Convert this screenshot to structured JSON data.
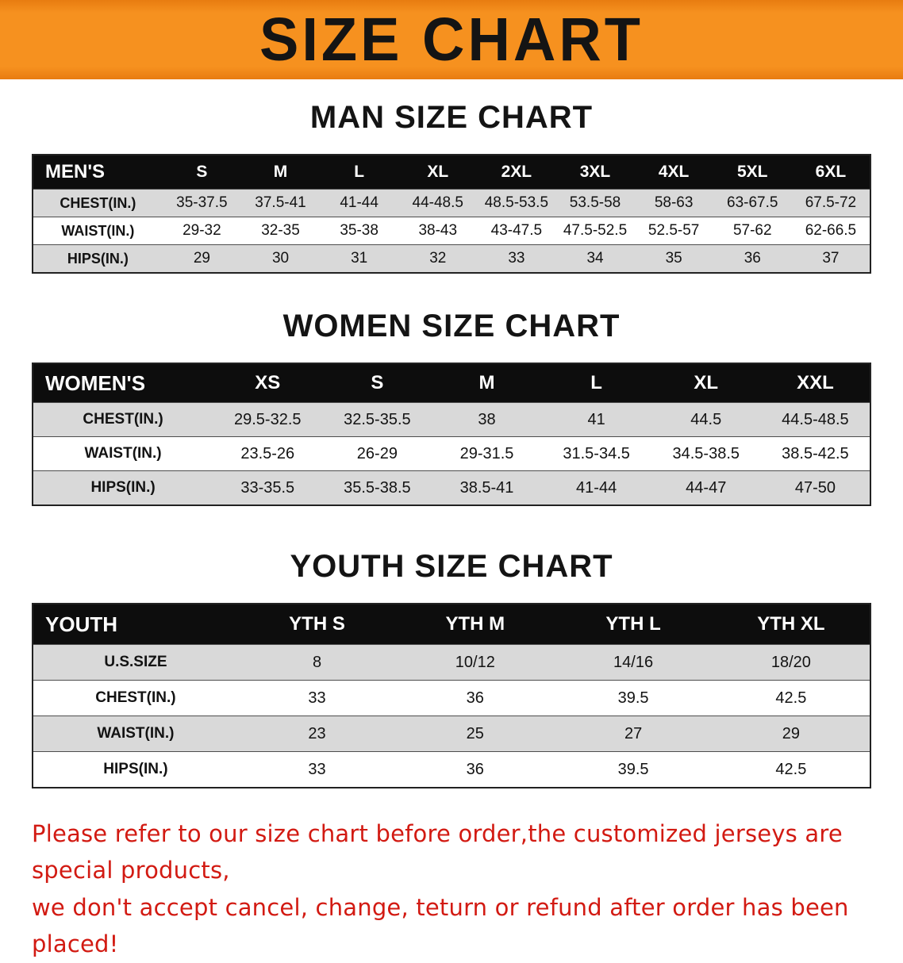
{
  "banner": {
    "title": "SIZE CHART",
    "bg_color": "#f6911f",
    "text_color": "#141414"
  },
  "sections": [
    {
      "id": "men",
      "heading": "MAN SIZE CHART",
      "table": {
        "header": [
          "MEN'S",
          "S",
          "M",
          "L",
          "XL",
          "2XL",
          "3XL",
          "4XL",
          "5XL",
          "6XL"
        ],
        "rows": [
          [
            "CHEST(IN.)",
            "35-37.5",
            "37.5-41",
            "41-44",
            "44-48.5",
            "48.5-53.5",
            "53.5-58",
            "58-63",
            "63-67.5",
            "67.5-72"
          ],
          [
            "WAIST(IN.)",
            "29-32",
            "32-35",
            "35-38",
            "38-43",
            "43-47.5",
            "47.5-52.5",
            "52.5-57",
            "57-62",
            "62-66.5"
          ],
          [
            "HIPS(IN.)",
            "29",
            "30",
            "31",
            "32",
            "33",
            "34",
            "35",
            "36",
            "37"
          ]
        ]
      }
    },
    {
      "id": "women",
      "heading": "WOMEN SIZE CHART",
      "table": {
        "header": [
          "WOMEN'S",
          "XS",
          "S",
          "M",
          "L",
          "XL",
          "XXL"
        ],
        "rows": [
          [
            "CHEST(IN.)",
            "29.5-32.5",
            "32.5-35.5",
            "38",
            "41",
            "44.5",
            "44.5-48.5"
          ],
          [
            "WAIST(IN.)",
            "23.5-26",
            "26-29",
            "29-31.5",
            "31.5-34.5",
            "34.5-38.5",
            "38.5-42.5"
          ],
          [
            "HIPS(IN.)",
            "33-35.5",
            "35.5-38.5",
            "38.5-41",
            "41-44",
            "44-47",
            "47-50"
          ]
        ]
      }
    },
    {
      "id": "youth",
      "heading": "YOUTH SIZE CHART",
      "table": {
        "header": [
          "YOUTH",
          "YTH S",
          "YTH M",
          "YTH L",
          "YTH XL"
        ],
        "rows": [
          [
            "U.S.SIZE",
            "8",
            "10/12",
            "14/16",
            "18/20"
          ],
          [
            "CHEST(IN.)",
            "33",
            "36",
            "39.5",
            "42.5"
          ],
          [
            "WAIST(IN.)",
            "23",
            "25",
            "27",
            "29"
          ],
          [
            "HIPS(IN.)",
            "33",
            "36",
            "39.5",
            "42.5"
          ]
        ]
      }
    }
  ],
  "footer": {
    "line1": "Please refer to our size chart before order,the customized jerseys are special products,",
    "line2": "we don't accept cancel, change, teturn or refund after order has been placed!",
    "text_color": "#d21a12"
  }
}
